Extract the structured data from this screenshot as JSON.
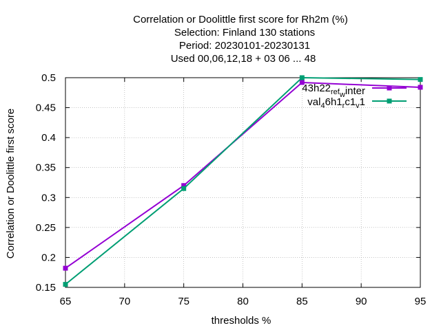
{
  "chart_data": {
    "type": "line",
    "title_lines": [
      "Correlation or Doolittle first score  for Rh2m (%)",
      "Selection: Finland    130 stations",
      "Period: 20230101-20230131",
      "Used  00,06,12,18  + 03 06 ... 48"
    ],
    "xlabel": "thresholds %",
    "ylabel": "Correlation or Doolittle first score",
    "xlim": [
      65,
      95
    ],
    "ylim": [
      0.15,
      0.5
    ],
    "x_ticks": [
      65,
      70,
      75,
      80,
      85,
      90,
      95
    ],
    "y_ticks": [
      0.15,
      0.2,
      0.25,
      0.3,
      0.35,
      0.4,
      0.45,
      0.5
    ],
    "x_tick_labels": [
      "65",
      "70",
      "75",
      "80",
      "85",
      "90",
      "95"
    ],
    "y_tick_labels": [
      "0.15",
      "0.2",
      "0.25",
      "0.3",
      "0.35",
      "0.4",
      "0.45",
      "0.5"
    ],
    "grid": true,
    "legend_position": "top-right",
    "series": [
      {
        "name": "43h22_ref_winter",
        "legend_main": "43h22",
        "legend_sub1": "ref",
        "legend_mid": "",
        "legend_sub2": "w",
        "legend_tail": "inter",
        "color": "#9400d3",
        "x": [
          65,
          75,
          85,
          95
        ],
        "values": [
          0.182,
          0.32,
          0.492,
          0.484
        ]
      },
      {
        "name": "val_46h1_rc1_v1",
        "legend_main": "val",
        "legend_sub1": "4",
        "legend_mid": "6h1",
        "legend_sub2": "r",
        "legend_tail": "c1",
        "legend_sub3": "v",
        "legend_end": "1",
        "color": "#009e73",
        "x": [
          65,
          75,
          85,
          95
        ],
        "values": [
          0.155,
          0.315,
          0.5,
          0.497
        ]
      }
    ]
  }
}
